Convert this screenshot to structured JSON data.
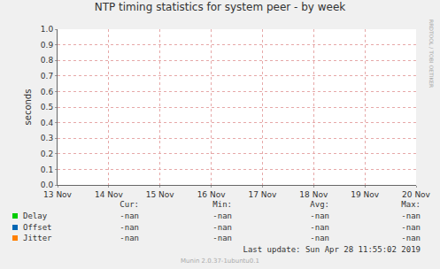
{
  "chart_data": {
    "type": "line",
    "title": "NTP timing statistics for system peer - by week",
    "y_label": "seconds",
    "categories": [
      "13 Nov",
      "14 Nov",
      "15 Nov",
      "16 Nov",
      "17 Nov",
      "18 Nov",
      "19 Nov",
      "20 Nov"
    ],
    "series": [
      {
        "name": "Delay",
        "color": "#00cc00",
        "values": [
          null,
          null,
          null,
          null,
          null,
          null,
          null,
          null
        ],
        "stats": [
          "-nan",
          "-nan",
          "-nan",
          "-nan"
        ]
      },
      {
        "name": "Offset",
        "color": "#0066b3",
        "values": [
          null,
          null,
          null,
          null,
          null,
          null,
          null,
          null
        ],
        "stats": [
          "-nan",
          "-nan",
          "-nan",
          "-nan"
        ]
      },
      {
        "name": "Jitter",
        "color": "#ff8000",
        "values": [
          null,
          null,
          null,
          null,
          null,
          null,
          null,
          null
        ],
        "stats": [
          "-nan",
          "-nan",
          "-nan",
          "-nan"
        ]
      }
    ],
    "stats_headers": [
      "Cur:",
      "Min:",
      "Avg:",
      "Max:"
    ],
    "ylim": [
      0,
      1
    ],
    "yticks": [
      {
        "value": 0,
        "label": "0.0"
      },
      0.1,
      0.2,
      0.3,
      0.4,
      0.5,
      0.6,
      0.7,
      0.8,
      0.9,
      {
        "value": 1,
        "label": "1.0"
      }
    ],
    "grid": true,
    "footer": "Last update: Sun Apr 28 11:55:02 2019",
    "credit": "Munin 2.0.37-1ubuntu0.1",
    "side_text": "RRDTOOL / TOBI OETIKER"
  }
}
